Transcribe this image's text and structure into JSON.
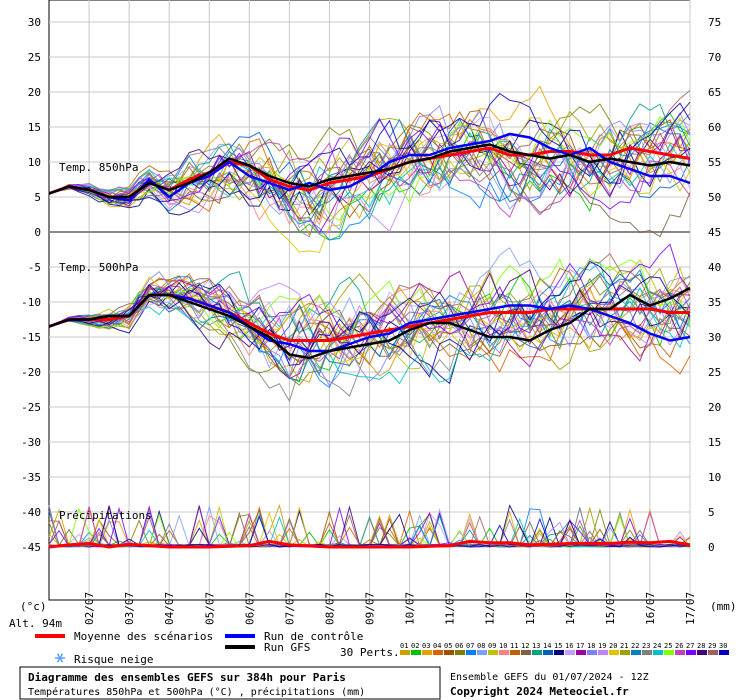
{
  "chart_data": {
    "type": "line",
    "x_dates": [
      "02/07",
      "03/07",
      "04/07",
      "05/07",
      "06/07",
      "07/07",
      "08/07",
      "09/07",
      "10/07",
      "11/07",
      "12/07",
      "13/07",
      "14/07",
      "15/07",
      "16/07",
      "17/07"
    ],
    "left_axis_ticks": [
      "30",
      "25",
      "20",
      "15",
      "10",
      "5",
      "0",
      "-5",
      "-10",
      "-15",
      "-20",
      "-25",
      "-30",
      "-35",
      "-40",
      "-45"
    ],
    "right_axis_ticks_top": [
      "75",
      "70",
      "65",
      "60",
      "55",
      "50",
      "45"
    ],
    "right_axis_ticks_bottom": [
      "40",
      "35",
      "30",
      "25",
      "20",
      "15",
      "10",
      "5",
      "0"
    ],
    "left_unit": "(°c)",
    "right_unit": "(mm)",
    "altitude": "Alt. 94m",
    "panel_labels": {
      "t850": "Temp. 850hPa",
      "t500": "Temp. 500hPa",
      "precip": "Précipitations"
    },
    "x_range_days": [
      0,
      16
    ],
    "series": [
      {
        "name": "Moyenne des scénarios",
        "color": "#ff0000",
        "panel": "t850",
        "values": [
          [
            0,
            5.5
          ],
          [
            0.5,
            6.5
          ],
          [
            1,
            6
          ],
          [
            1.5,
            5
          ],
          [
            2,
            5
          ],
          [
            2.5,
            7
          ],
          [
            3,
            6
          ],
          [
            3.5,
            7.5
          ],
          [
            4,
            8.5
          ],
          [
            4.5,
            10
          ],
          [
            5,
            9.5
          ],
          [
            5.5,
            7.5
          ],
          [
            6,
            6.5
          ],
          [
            6.5,
            6
          ],
          [
            7,
            7
          ],
          [
            7.5,
            7.5
          ],
          [
            8,
            8
          ],
          [
            8.5,
            9
          ],
          [
            9,
            10
          ],
          [
            9.5,
            10.5
          ],
          [
            10,
            11
          ],
          [
            10.5,
            11.5
          ],
          [
            11,
            12
          ],
          [
            11.5,
            11
          ],
          [
            12,
            11
          ],
          [
            12.5,
            11.5
          ],
          [
            13,
            11.5
          ],
          [
            13.5,
            11
          ],
          [
            14,
            11
          ],
          [
            14.5,
            12
          ],
          [
            15,
            11.5
          ],
          [
            15.5,
            11
          ],
          [
            16,
            10.5
          ]
        ]
      },
      {
        "name": "Run de contrôle",
        "color": "#0000ff",
        "panel": "t850",
        "values": [
          [
            0,
            5.5
          ],
          [
            0.5,
            6.5
          ],
          [
            1,
            6
          ],
          [
            1.5,
            5
          ],
          [
            2,
            4.5
          ],
          [
            2.5,
            7.5
          ],
          [
            3,
            5
          ],
          [
            3.5,
            7
          ],
          [
            4,
            8
          ],
          [
            4.5,
            10
          ],
          [
            5,
            8
          ],
          [
            5.5,
            7
          ],
          [
            6,
            6
          ],
          [
            6.5,
            7
          ],
          [
            7,
            6
          ],
          [
            7.5,
            6.5
          ],
          [
            8,
            8
          ],
          [
            8.5,
            10
          ],
          [
            9,
            11
          ],
          [
            9.5,
            11
          ],
          [
            10,
            12
          ],
          [
            10.5,
            12.5
          ],
          [
            11,
            13
          ],
          [
            11.5,
            14
          ],
          [
            12,
            13.5
          ],
          [
            12.5,
            12
          ],
          [
            13,
            11
          ],
          [
            13.5,
            12
          ],
          [
            14,
            10
          ],
          [
            14.5,
            9
          ],
          [
            15,
            8
          ],
          [
            15.5,
            8
          ],
          [
            16,
            7
          ]
        ]
      },
      {
        "name": "Run GFS",
        "color": "#000000",
        "panel": "t850",
        "values": [
          [
            0,
            5.5
          ],
          [
            0.5,
            6.5
          ],
          [
            1,
            6
          ],
          [
            1.5,
            5
          ],
          [
            2,
            5
          ],
          [
            2.5,
            7
          ],
          [
            3,
            6
          ],
          [
            3.5,
            7
          ],
          [
            4,
            8.5
          ],
          [
            4.5,
            10.5
          ],
          [
            5,
            9.5
          ],
          [
            5.5,
            8
          ],
          [
            6,
            7
          ],
          [
            6.5,
            6.5
          ],
          [
            7,
            7.5
          ],
          [
            7.5,
            8
          ],
          [
            8,
            8.5
          ],
          [
            8.5,
            9
          ],
          [
            9,
            10
          ],
          [
            9.5,
            10.5
          ],
          [
            10,
            11.5
          ],
          [
            10.5,
            12
          ],
          [
            11,
            12.5
          ],
          [
            11.5,
            11.5
          ],
          [
            12,
            11
          ],
          [
            12.5,
            10.5
          ],
          [
            13,
            11
          ],
          [
            13.5,
            10
          ],
          [
            14,
            10.5
          ],
          [
            14.5,
            10
          ],
          [
            15,
            9.5
          ],
          [
            15.5,
            10
          ],
          [
            16,
            9.5
          ]
        ]
      },
      {
        "name": "Moyenne des scénarios",
        "color": "#ff0000",
        "panel": "t500",
        "values": [
          [
            0,
            -13.5
          ],
          [
            0.5,
            -12.5
          ],
          [
            1,
            -12.5
          ],
          [
            1.5,
            -12.5
          ],
          [
            2,
            -12
          ],
          [
            2.5,
            -9
          ],
          [
            3,
            -9
          ],
          [
            3.5,
            -9.5
          ],
          [
            4,
            -10.5
          ],
          [
            4.5,
            -11.5
          ],
          [
            5,
            -13
          ],
          [
            5.5,
            -14.5
          ],
          [
            6,
            -15.5
          ],
          [
            6.5,
            -15.5
          ],
          [
            7,
            -15.5
          ],
          [
            7.5,
            -15
          ],
          [
            8,
            -14.5
          ],
          [
            8.5,
            -14
          ],
          [
            9,
            -13.5
          ],
          [
            9.5,
            -13
          ],
          [
            10,
            -12.5
          ],
          [
            10.5,
            -12
          ],
          [
            11,
            -11.5
          ],
          [
            11.5,
            -11.5
          ],
          [
            12,
            -11.5
          ],
          [
            12.5,
            -11
          ],
          [
            13,
            -11
          ],
          [
            13.5,
            -11
          ],
          [
            14,
            -11
          ],
          [
            14.5,
            -11
          ],
          [
            15,
            -11
          ],
          [
            15.5,
            -11.5
          ],
          [
            16,
            -11.5
          ]
        ]
      },
      {
        "name": "Run de contrôle",
        "color": "#0000ff",
        "panel": "t500",
        "values": [
          [
            0,
            -13.5
          ],
          [
            0.5,
            -12.5
          ],
          [
            1,
            -12.5
          ],
          [
            1.5,
            -12
          ],
          [
            2,
            -12
          ],
          [
            2.5,
            -9
          ],
          [
            3,
            -9
          ],
          [
            3.5,
            -9.5
          ],
          [
            4,
            -10.5
          ],
          [
            4.5,
            -11.5
          ],
          [
            5,
            -13.5
          ],
          [
            5.5,
            -15.5
          ],
          [
            6,
            -16
          ],
          [
            6.5,
            -17
          ],
          [
            7,
            -17
          ],
          [
            7.5,
            -16
          ],
          [
            8,
            -15
          ],
          [
            8.5,
            -14.5
          ],
          [
            9,
            -13
          ],
          [
            9.5,
            -12.5
          ],
          [
            10,
            -12
          ],
          [
            10.5,
            -11.5
          ],
          [
            11,
            -11
          ],
          [
            11.5,
            -10.5
          ],
          [
            12,
            -10.5
          ],
          [
            12.5,
            -11
          ],
          [
            13,
            -10.5
          ],
          [
            13.5,
            -11
          ],
          [
            14,
            -12
          ],
          [
            14.5,
            -13
          ],
          [
            15,
            -14.5
          ],
          [
            15.5,
            -15.5
          ],
          [
            16,
            -15
          ]
        ]
      },
      {
        "name": "Run GFS",
        "color": "#000000",
        "panel": "t500",
        "values": [
          [
            0,
            -13.5
          ],
          [
            0.5,
            -12.5
          ],
          [
            1,
            -12.5
          ],
          [
            1.5,
            -12
          ],
          [
            2,
            -12
          ],
          [
            2.5,
            -9
          ],
          [
            3,
            -9
          ],
          [
            3.5,
            -10
          ],
          [
            4,
            -11
          ],
          [
            4.5,
            -12
          ],
          [
            5,
            -13.5
          ],
          [
            5.5,
            -15
          ],
          [
            6,
            -17.5
          ],
          [
            6.5,
            -18
          ],
          [
            7,
            -17
          ],
          [
            7.5,
            -16.5
          ],
          [
            8,
            -16
          ],
          [
            8.5,
            -15.5
          ],
          [
            9,
            -14
          ],
          [
            9.5,
            -13
          ],
          [
            10,
            -13
          ],
          [
            10.5,
            -14
          ],
          [
            11,
            -15
          ],
          [
            11.5,
            -15
          ],
          [
            12,
            -15.5
          ],
          [
            12.5,
            -14
          ],
          [
            13,
            -13
          ],
          [
            13.5,
            -11
          ],
          [
            14,
            -11
          ],
          [
            14.5,
            -9
          ],
          [
            15,
            -10.5
          ],
          [
            15.5,
            -9.5
          ],
          [
            16,
            -8
          ]
        ]
      },
      {
        "name": "Moyenne des scénarios",
        "color": "#ff0000",
        "panel": "precip",
        "values": [
          [
            0,
            0
          ],
          [
            0.5,
            0.3
          ],
          [
            1,
            0.5
          ],
          [
            1.5,
            0
          ],
          [
            2,
            0.4
          ],
          [
            2.5,
            0.2
          ],
          [
            3,
            0
          ],
          [
            4,
            0
          ],
          [
            5,
            0.2
          ],
          [
            5.5,
            0.8
          ],
          [
            6,
            0.3
          ],
          [
            7,
            0
          ],
          [
            8,
            0
          ],
          [
            9,
            0
          ],
          [
            10,
            0.2
          ],
          [
            10.5,
            0.8
          ],
          [
            11,
            0.6
          ],
          [
            11.5,
            0.6
          ],
          [
            12,
            0.3
          ],
          [
            12.5,
            0.4
          ],
          [
            13,
            0.5
          ],
          [
            13.5,
            0.5
          ],
          [
            14,
            0.5
          ],
          [
            14.5,
            0.7
          ],
          [
            15,
            0.6
          ],
          [
            15.5,
            0.8
          ],
          [
            16,
            0.3
          ]
        ]
      }
    ]
  },
  "legend": {
    "mean_label": "Moyenne des scénarios",
    "control_label": "Run de contrôle",
    "gfs_label": "Run GFS",
    "snow_label": "Risque neige",
    "perts_label": "30 Perts.",
    "pert_ids": [
      "01",
      "02",
      "03",
      "04",
      "05",
      "06",
      "07",
      "08",
      "09",
      "10",
      "11",
      "12",
      "13",
      "14",
      "15",
      "16",
      "17",
      "18",
      "19",
      "20",
      "21",
      "22",
      "23",
      "24",
      "25",
      "26",
      "27",
      "28",
      "29",
      "30"
    ],
    "pert_colors": [
      "#c8a000",
      "#00c000",
      "#e8a000",
      "#e06000",
      "#a05000",
      "#808000",
      "#0080ff",
      "#80a0ff",
      "#c0c000",
      "#ff8080",
      "#c06000",
      "#806040",
      "#00a080",
      "#0060c0",
      "#000080",
      "#c0a0ff",
      "#a000a0",
      "#8080ff",
      "#c080ff",
      "#e0c000",
      "#a0a000",
      "#0080c0",
      "#808080",
      "#00c0c0",
      "#80ff00",
      "#c040c0",
      "#8000ff",
      "#400080",
      "#a06060",
      "#0000c0"
    ],
    "mean_color": "#ff0000",
    "control_color": "#0000ff",
    "gfs_color": "#000000"
  },
  "footer": {
    "title": "Diagramme des ensembles GEFS sur 384h pour Paris",
    "subtitle": "Températures 850hPa et 500hPa (°C) , précipitations (mm)",
    "run_info": "Ensemble GEFS du 01/07/2024 - 12Z",
    "copyright": "Copyright 2024 Meteociel.fr"
  }
}
